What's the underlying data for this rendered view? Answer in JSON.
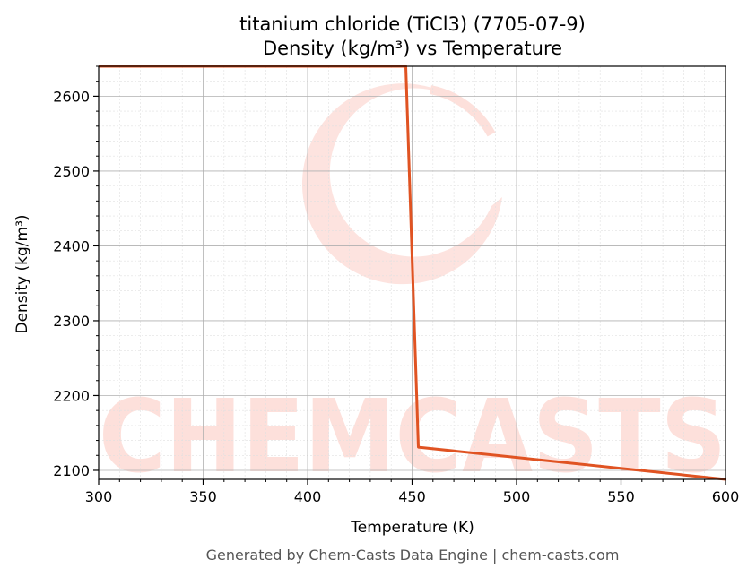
{
  "colors": {
    "series": "#e05322",
    "watermark": "#fde0db",
    "grid_major": "#b0b0b0",
    "grid_minor": "#e0e0e0",
    "footer": "#555555"
  },
  "watermark": {
    "text": "CHEMCASTS",
    "logo": "crescent-c-logo"
  },
  "footer": {
    "text": "Generated by Chem-Casts Data Engine | chem-casts.com"
  },
  "chart_data": {
    "type": "line",
    "title": "titanium chloride (TiCl3) (7705-07-9)",
    "subtitle": "Density (kg/m³) vs Temperature",
    "xlabel": "Temperature (K)",
    "ylabel": "Density (kg/m³)",
    "xlim": [
      300,
      600
    ],
    "ylim": [
      2088,
      2640
    ],
    "xticks": [
      300,
      350,
      400,
      450,
      500,
      550,
      600
    ],
    "yticks": [
      2100,
      2200,
      2300,
      2400,
      2500,
      2600
    ],
    "grid": true,
    "minor_grid": true,
    "legend": "none",
    "series": [
      {
        "x": [
          300,
          447,
          453,
          600
        ],
        "y": [
          2640,
          2640,
          2131,
          2088
        ]
      }
    ]
  }
}
